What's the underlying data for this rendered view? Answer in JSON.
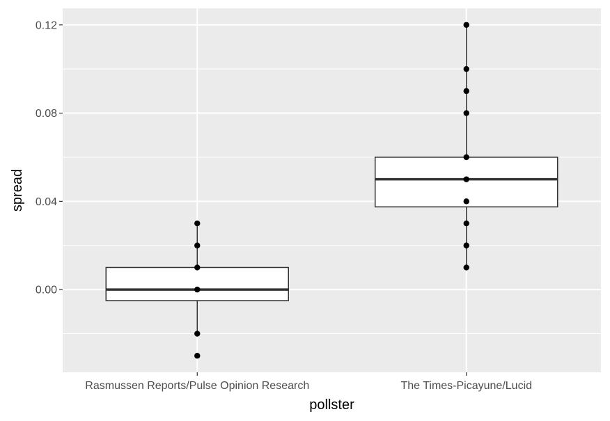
{
  "chart_data": {
    "type": "boxplot",
    "title": "",
    "xlabel": "pollster",
    "ylabel": "spread",
    "categories": [
      "Rasmussen Reports/Pulse Opinion Research",
      "The Times-Picayune/Lucid"
    ],
    "ylim": [
      -0.0375,
      0.1275
    ],
    "yticks": [
      0.0,
      0.04,
      0.08,
      0.12
    ],
    "ytick_labels": [
      "0.00",
      "0.04",
      "0.08",
      "0.12"
    ],
    "grid": true,
    "legend": "none",
    "panel_color": "#ebebeb",
    "grid_color": "#ffffff",
    "point_color": "#000000",
    "boxes": [
      {
        "category": "Rasmussen Reports/Pulse Opinion Research",
        "whisker_low": -0.02,
        "q1": -0.005,
        "median": 0.0,
        "q3": 0.01,
        "whisker_high": 0.03
      },
      {
        "category": "The Times-Picayune/Lucid",
        "whisker_low": 0.01,
        "q1": 0.0375,
        "median": 0.05,
        "q3": 0.06,
        "whisker_high": 0.12
      }
    ],
    "points": [
      {
        "category": "Rasmussen Reports/Pulse Opinion Research",
        "values": [
          0.03,
          0.02,
          0.01,
          0.0,
          -0.02,
          -0.03
        ]
      },
      {
        "category": "The Times-Picayune/Lucid",
        "values": [
          0.12,
          0.1,
          0.09,
          0.08,
          0.06,
          0.05,
          0.04,
          0.03,
          0.02,
          0.01
        ]
      }
    ]
  }
}
